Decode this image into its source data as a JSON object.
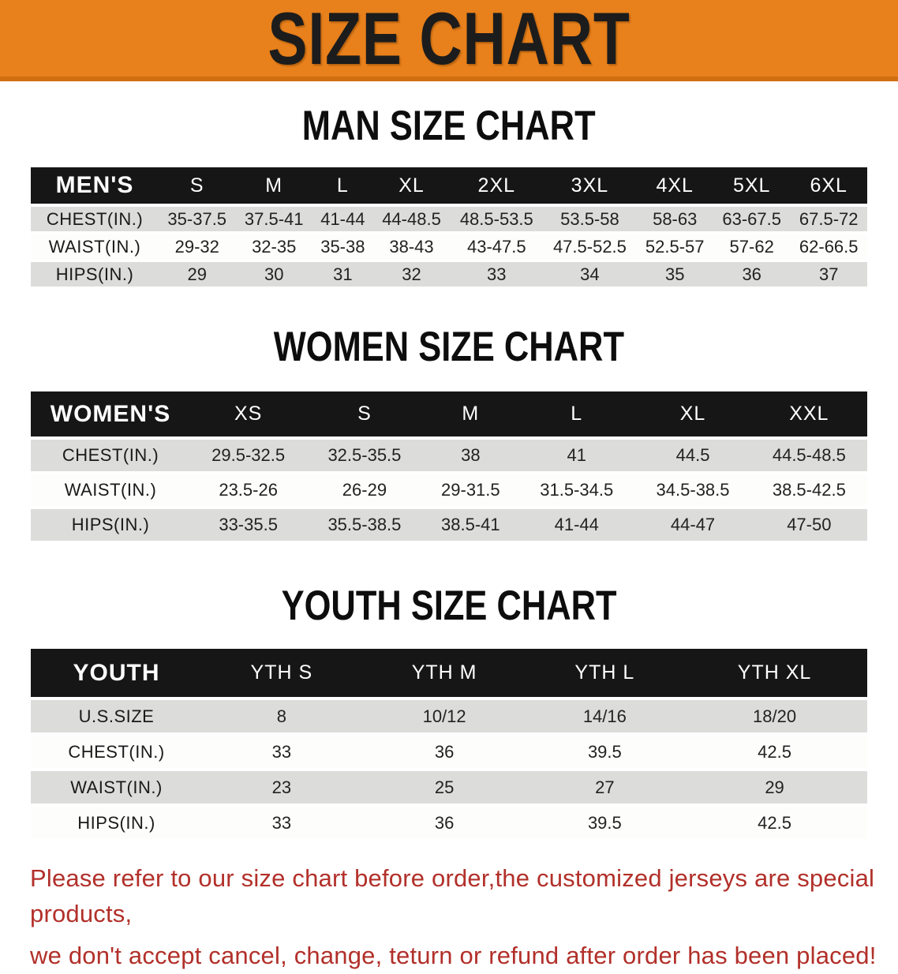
{
  "banner": {
    "title": "SIZE CHART",
    "bg_color": "#e8801b",
    "border_color": "#cf6f10",
    "text_color": "#1c1c1c"
  },
  "sections": [
    {
      "title": "MAN SIZE CHART",
      "header_label": "MEN'S",
      "columns": [
        "S",
        "M",
        "L",
        "XL",
        "2XL",
        "3XL",
        "4XL",
        "5XL",
        "6XL"
      ],
      "rows": [
        {
          "label": "CHEST(IN.)",
          "values": [
            "35-37.5",
            "37.5-41",
            "41-44",
            "44-48.5",
            "48.5-53.5",
            "53.5-58",
            "58-63",
            "63-67.5",
            "67.5-72"
          ]
        },
        {
          "label": "WAIST(IN.)",
          "values": [
            "29-32",
            "32-35",
            "35-38",
            "38-43",
            "43-47.5",
            "47.5-52.5",
            "52.5-57",
            "57-62",
            "62-66.5"
          ]
        },
        {
          "label": "HIPS(IN.)",
          "values": [
            "29",
            "30",
            "31",
            "32",
            "33",
            "34",
            "35",
            "36",
            "37"
          ]
        }
      ]
    },
    {
      "title": "WOMEN SIZE CHART",
      "header_label": "WOMEN'S",
      "columns": [
        "XS",
        "S",
        "M",
        "L",
        "XL",
        "XXL"
      ],
      "rows": [
        {
          "label": "CHEST(IN.)",
          "values": [
            "29.5-32.5",
            "32.5-35.5",
            "38",
            "41",
            "44.5",
            "44.5-48.5"
          ]
        },
        {
          "label": "WAIST(IN.)",
          "values": [
            "23.5-26",
            "26-29",
            "29-31.5",
            "31.5-34.5",
            "34.5-38.5",
            "38.5-42.5"
          ]
        },
        {
          "label": "HIPS(IN.)",
          "values": [
            "33-35.5",
            "35.5-38.5",
            "38.5-41",
            "41-44",
            "44-47",
            "47-50"
          ]
        }
      ]
    },
    {
      "title": "YOUTH SIZE CHART",
      "header_label": "YOUTH",
      "columns": [
        "YTH S",
        "YTH M",
        "YTH L",
        "YTH XL"
      ],
      "rows": [
        {
          "label": "U.S.SIZE",
          "values": [
            "8",
            "10/12",
            "14/16",
            "18/20"
          ]
        },
        {
          "label": "CHEST(IN.)",
          "values": [
            "33",
            "36",
            "39.5",
            "42.5"
          ]
        },
        {
          "label": "WAIST(IN.)",
          "values": [
            "23",
            "25",
            "27",
            "29"
          ]
        },
        {
          "label": "HIPS(IN.)",
          "values": [
            "33",
            "36",
            "39.5",
            "42.5"
          ]
        }
      ]
    }
  ],
  "disclaimer": {
    "line1": "Please refer to our size chart before order,the customized jerseys are special products,",
    "line2": "we don't accept cancel, change, teturn or refund after order has been placed!",
    "text_color": "#b2302a"
  },
  "colors": {
    "header_bar": "#161616",
    "header_text": "#ffffff",
    "row_alt": "#dcdcda",
    "row_plain": "#fdfdfc",
    "body_text": "#1a1a1a"
  }
}
